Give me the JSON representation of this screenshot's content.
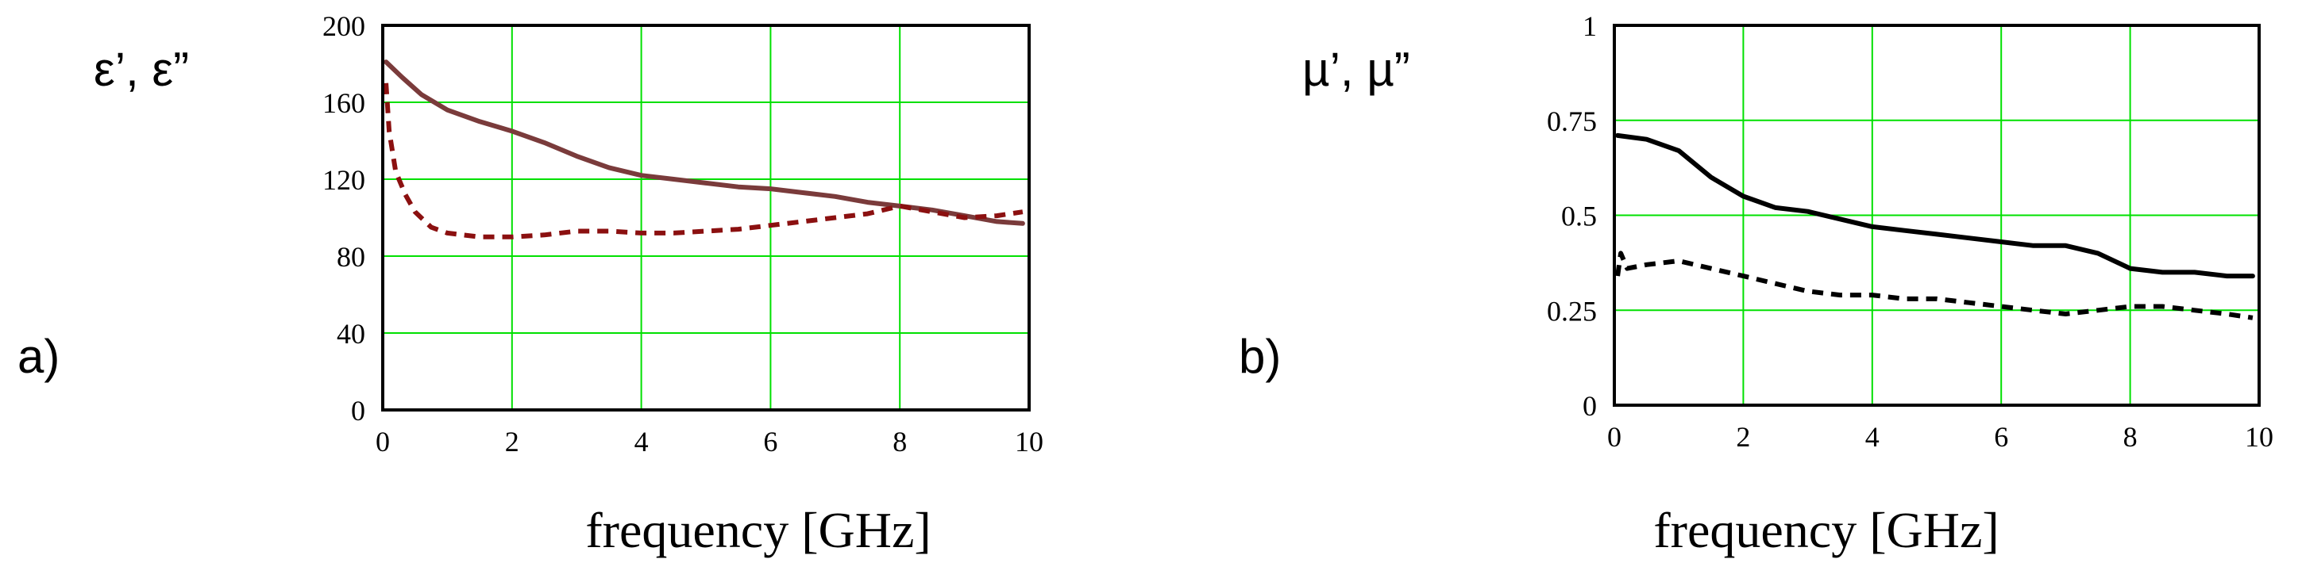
{
  "chart_data": [
    {
      "type": "line",
      "panel_label": "a)",
      "ylabel": "ε’, ε”",
      "xlabel": "frequency [GHz]",
      "xlim": [
        0,
        10
      ],
      "ylim": [
        0,
        200
      ],
      "xticks": [
        0,
        2,
        4,
        6,
        8,
        10
      ],
      "yticks": [
        0,
        40,
        80,
        120,
        160,
        200
      ],
      "grid": true,
      "grid_color": "#00e000",
      "series": [
        {
          "style": "solid",
          "color": "#7a3b3b",
          "x": [
            0.05,
            0.3,
            0.6,
            1.0,
            1.5,
            2.0,
            2.5,
            3.0,
            3.5,
            4.0,
            4.5,
            5.0,
            5.5,
            6.0,
            6.5,
            7.0,
            7.5,
            8.0,
            8.5,
            9.0,
            9.5,
            9.9
          ],
          "y": [
            181,
            173,
            164,
            156,
            150,
            145,
            139,
            132,
            126,
            122,
            120,
            118,
            116,
            115,
            113,
            111,
            108,
            106,
            104,
            101,
            98,
            97
          ]
        },
        {
          "style": "dashed",
          "color": "#8b1010",
          "x": [
            0.05,
            0.1,
            0.2,
            0.35,
            0.5,
            0.75,
            1.0,
            1.5,
            2.0,
            2.5,
            3.0,
            3.5,
            4.0,
            4.5,
            5.0,
            5.5,
            6.0,
            6.5,
            7.0,
            7.5,
            8.0,
            8.5,
            9.0,
            9.5,
            9.9
          ],
          "y": [
            170,
            145,
            124,
            112,
            103,
            95,
            92,
            90,
            90,
            91,
            93,
            93,
            92,
            92,
            93,
            94,
            96,
            98,
            100,
            102,
            106,
            103,
            100,
            101,
            103
          ]
        }
      ]
    },
    {
      "type": "line",
      "panel_label": "b)",
      "ylabel": "µ’, µ”",
      "xlabel": "frequency [GHz]",
      "xlim": [
        0,
        10
      ],
      "ylim": [
        0,
        1
      ],
      "xticks": [
        0,
        2,
        4,
        6,
        8,
        10
      ],
      "yticks": [
        0,
        0.25,
        0.5,
        0.75,
        1
      ],
      "grid": true,
      "grid_color": "#00e000",
      "series": [
        {
          "style": "solid",
          "color": "#000000",
          "x": [
            0.05,
            0.5,
            1.0,
            1.5,
            2.0,
            2.5,
            3.0,
            3.5,
            4.0,
            4.5,
            5.0,
            5.5,
            6.0,
            6.5,
            7.0,
            7.5,
            8.0,
            8.5,
            9.0,
            9.5,
            9.9
          ],
          "y": [
            0.71,
            0.7,
            0.67,
            0.6,
            0.55,
            0.52,
            0.51,
            0.49,
            0.47,
            0.46,
            0.45,
            0.44,
            0.43,
            0.42,
            0.42,
            0.4,
            0.36,
            0.35,
            0.35,
            0.34,
            0.34
          ]
        },
        {
          "style": "dashed",
          "color": "#000000",
          "x": [
            0.05,
            0.1,
            0.2,
            0.5,
            1.0,
            1.5,
            2.0,
            2.5,
            3.0,
            3.5,
            4.0,
            4.5,
            5.0,
            5.5,
            6.0,
            6.5,
            7.0,
            7.5,
            8.0,
            8.5,
            9.0,
            9.5,
            9.9
          ],
          "y": [
            0.34,
            0.4,
            0.36,
            0.37,
            0.38,
            0.36,
            0.34,
            0.32,
            0.3,
            0.29,
            0.29,
            0.28,
            0.28,
            0.27,
            0.26,
            0.25,
            0.24,
            0.25,
            0.26,
            0.26,
            0.25,
            0.24,
            0.23
          ]
        }
      ]
    }
  ]
}
